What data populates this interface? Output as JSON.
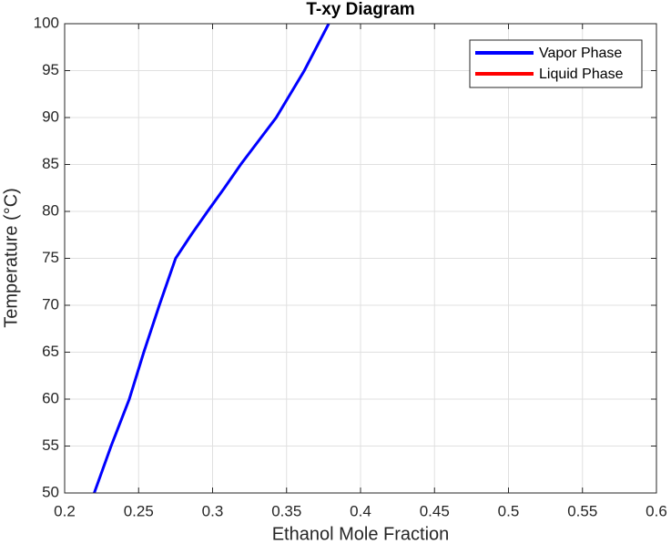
{
  "chart_data": {
    "type": "line",
    "title": "T-xy Diagram",
    "x_label": "Ethanol Mole Fraction",
    "y_label": "Temperature (°C)",
    "x": [
      0.22,
      0.2314,
      0.2437,
      0.2535,
      0.264,
      0.275,
      0.2855,
      0.2966,
      0.308,
      0.319,
      0.331,
      0.343,
      0.3525,
      0.362,
      0.3785
    ],
    "series": [
      {
        "name": "Vapor Phase",
        "color": "#0000ff",
        "values": [
          50,
          55,
          60,
          65,
          70,
          75,
          77.5,
          80,
          82.5,
          85,
          87.5,
          90,
          92.5,
          95,
          100
        ]
      },
      {
        "name": "Liquid Phase",
        "color": "#ff0000",
        "values": [
          null,
          null,
          null,
          null,
          null,
          null,
          null,
          null,
          null,
          null,
          null,
          null,
          null,
          null,
          null
        ]
      }
    ],
    "xlim": [
      0.2,
      0.6
    ],
    "ylim": [
      50,
      100
    ],
    "xticks": [
      0.2,
      0.25,
      0.3,
      0.35,
      0.4,
      0.45,
      0.5,
      0.55,
      0.6
    ],
    "yticks": [
      50,
      55,
      60,
      65,
      70,
      75,
      80,
      85,
      90,
      95,
      100
    ],
    "grid": true,
    "legend": "upper right"
  }
}
